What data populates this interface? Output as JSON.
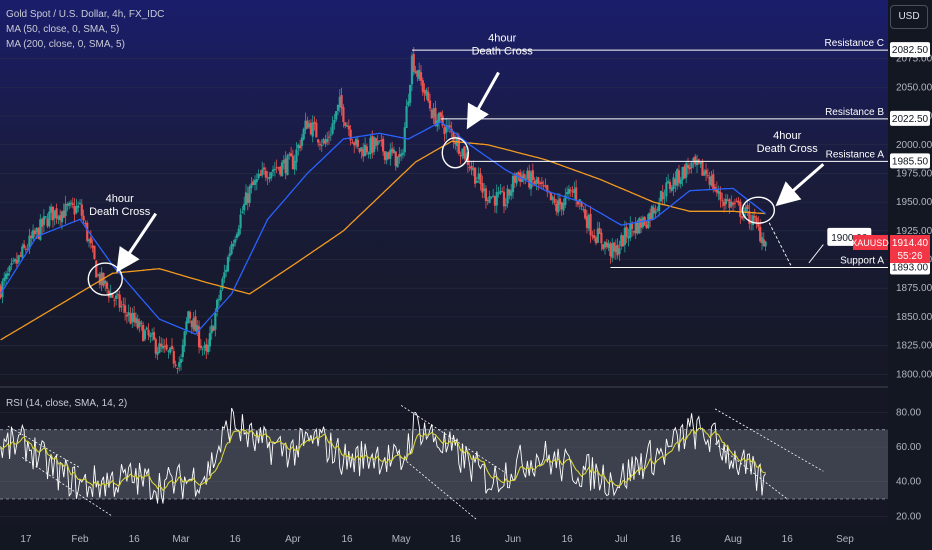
{
  "header": {
    "title": "Gold Spot / U.S. Dollar, 4h, FX_IDC",
    "ma50": "MA (50, close, 0, SMA, 5)",
    "ma200": "MA (200, close, 0, SMA, 5)",
    "rsi": "RSI (14, close, SMA, 14, 2)",
    "currency": "USD"
  },
  "colors": {
    "background": "#131722",
    "bull": "#26a69a",
    "bear": "#ef5350",
    "ma50": "#2962ff",
    "ma200": "#f29a1f",
    "rsi": "#ffffff",
    "rsi_ma": "#d6d23a",
    "price_tag": "#f23645"
  },
  "chart_data": [
    {
      "type": "candlestick",
      "title": "Gold Spot / U.S. Dollar, 4h, FX_IDC",
      "ylim": [
        1795,
        2100
      ],
      "y_ticks": [
        1800.0,
        1825.0,
        1850.0,
        1875.0,
        1900.0,
        1925.0,
        1950.0,
        1975.0,
        2000.0,
        2025.0,
        2050.0,
        2075.0
      ],
      "y_tick_labels": [
        "1800.00",
        "1825.00",
        "1850.00",
        "1875.00",
        "1900.00",
        "1925.00",
        "1950.00",
        "1975.00",
        "2000.00",
        "2025.00",
        "2050.00",
        "2075.00"
      ],
      "x_tick_labels": [
        "17",
        "Feb",
        "16",
        "Mar",
        "16",
        "Apr",
        "16",
        "May",
        "16",
        "Jun",
        "16",
        "Jul",
        "16",
        "Aug",
        "16",
        "Sep"
      ],
      "price_path": [
        [
          "Jan 10",
          1875
        ],
        [
          "Jan 17",
          1910
        ],
        [
          "Jan 24",
          1940
        ],
        [
          "Feb 1",
          1945
        ],
        [
          "Feb 6",
          1885
        ],
        [
          "Feb 10",
          1868
        ],
        [
          "Feb 16",
          1845
        ],
        [
          "Feb 23",
          1822
        ],
        [
          "Mar 1",
          1810
        ],
        [
          "Mar 3",
          1855
        ],
        [
          "Mar 8",
          1815
        ],
        [
          "Mar 10",
          1845
        ],
        [
          "Mar 15",
          1915
        ],
        [
          "Mar 20",
          1960
        ],
        [
          "Mar 25",
          1978
        ],
        [
          "Apr 1",
          1985
        ],
        [
          "Apr 5",
          2020
        ],
        [
          "Apr 10",
          2000
        ],
        [
          "Apr 14",
          2035
        ],
        [
          "Apr 19",
          1995
        ],
        [
          "Apr 24",
          2000
        ],
        [
          "May 1",
          1985
        ],
        [
          "May 4",
          2075
        ],
        [
          "May 10",
          2025
        ],
        [
          "May 15",
          2010
        ],
        [
          "May 19",
          1990
        ],
        [
          "May 24",
          1958
        ],
        [
          "May 30",
          1950
        ],
        [
          "Jun 2",
          1975
        ],
        [
          "Jun 8",
          1965
        ],
        [
          "Jun 13",
          1945
        ],
        [
          "Jun 18",
          1960
        ],
        [
          "Jun 23",
          1925
        ],
        [
          "Jun 29",
          1905
        ],
        [
          "Jul 3",
          1925
        ],
        [
          "Jul 8",
          1935
        ],
        [
          "Jul 13",
          1960
        ],
        [
          "Jul 20",
          1982
        ],
        [
          "Jul 25",
          1975
        ],
        [
          "Jul 28",
          1955
        ],
        [
          "Aug 2",
          1945
        ],
        [
          "Aug 6",
          1936
        ],
        [
          "Aug 10",
          1915
        ]
      ],
      "ma50_path": [
        [
          "Jan 10",
          1870
        ],
        [
          "Jan 20",
          1920
        ],
        [
          "Feb 1",
          1935
        ],
        [
          "Feb 10",
          1895
        ],
        [
          "Feb 23",
          1848
        ],
        [
          "Mar 5",
          1835
        ],
        [
          "Mar 15",
          1870
        ],
        [
          "Mar 25",
          1935
        ],
        [
          "Apr 5",
          1975
        ],
        [
          "Apr 15",
          2005
        ],
        [
          "Apr 25",
          2010
        ],
        [
          "May 3",
          2005
        ],
        [
          "May 12",
          2020
        ],
        [
          "May 20",
          2000
        ],
        [
          "May 30",
          1978
        ],
        [
          "Jun 10",
          1960
        ],
        [
          "Jun 20",
          1950
        ],
        [
          "Jul 1",
          1930
        ],
        [
          "Jul 10",
          1935
        ],
        [
          "Jul 20",
          1960
        ],
        [
          "Aug 1",
          1962
        ],
        [
          "Aug 10",
          1940
        ]
      ],
      "ma200_path": [
        [
          "Jan 10",
          1830
        ],
        [
          "Jan 25",
          1858
        ],
        [
          "Feb 10",
          1888
        ],
        [
          "Feb 23",
          1892
        ],
        [
          "Mar 8",
          1880
        ],
        [
          "Mar 20",
          1870
        ],
        [
          "Apr 1",
          1895
        ],
        [
          "Apr 15",
          1925
        ],
        [
          "Apr 25",
          1955
        ],
        [
          "May 5",
          1985
        ],
        [
          "May 15",
          2003
        ],
        [
          "May 25",
          2000
        ],
        [
          "Jun 10",
          1987
        ],
        [
          "Jun 25",
          1970
        ],
        [
          "Jul 10",
          1950
        ],
        [
          "Jul 20",
          1942
        ],
        [
          "Aug 1",
          1942
        ],
        [
          "Aug 10",
          1940
        ]
      ],
      "levels": [
        {
          "name": "Resistance C",
          "value": 2082.5,
          "label": "2082.50"
        },
        {
          "name": "Resistance B",
          "value": 2022.5,
          "label": "2022.50"
        },
        {
          "name": "Resistance A",
          "value": 1985.5,
          "label": "1985.50"
        },
        {
          "name": "Support A",
          "value": 1893.0,
          "label": "1893.00"
        }
      ],
      "current_price": {
        "symbol": "XAUUSD",
        "value": 1914.4,
        "label": "1914.40",
        "countdown": "55:26"
      },
      "target": {
        "label": "1900.00",
        "value": 1900.0
      },
      "annotations": [
        {
          "text": [
            "4hour",
            "Death Cross"
          ],
          "at": "Feb 8"
        },
        {
          "text": [
            "4hour",
            "Death Cross"
          ],
          "at": "May 16"
        },
        {
          "text": [
            "4hour",
            "Death Cross"
          ],
          "at": "Aug 7"
        }
      ]
    },
    {
      "type": "line",
      "title": "RSI (14, close, SMA, 14, 2)",
      "ylim": [
        15,
        90
      ],
      "y_ticks": [
        20.0,
        40.0,
        60.0,
        80.0
      ],
      "y_tick_labels": [
        "20.00",
        "40.00",
        "60.00",
        "80.00"
      ],
      "band": [
        30,
        70
      ],
      "rsi_path": [
        [
          "Jan 10",
          60
        ],
        [
          "Jan 17",
          62
        ],
        [
          "Jan 24",
          48
        ],
        [
          "Feb 1",
          38
        ],
        [
          "Feb 8",
          40
        ],
        [
          "Feb 16",
          42
        ],
        [
          "Feb 23",
          38
        ],
        [
          "Mar 1",
          40
        ],
        [
          "Mar 8",
          44
        ],
        [
          "Mar 15",
          75
        ],
        [
          "Mar 22",
          62
        ],
        [
          "Apr 1",
          58
        ],
        [
          "Apr 8",
          65
        ],
        [
          "Apr 16",
          52
        ],
        [
          "Apr 24",
          56
        ],
        [
          "May 1",
          50
        ],
        [
          "May 5",
          74
        ],
        [
          "May 12",
          62
        ],
        [
          "May 19",
          52
        ],
        [
          "May 26",
          40
        ],
        [
          "Jun 2",
          50
        ],
        [
          "Jun 9",
          55
        ],
        [
          "Jun 16",
          48
        ],
        [
          "Jun 23",
          45
        ],
        [
          "Jun 30",
          40
        ],
        [
          "Jul 7",
          52
        ],
        [
          "Jul 14",
          58
        ],
        [
          "Jul 20",
          70
        ],
        [
          "Jul 27",
          64
        ],
        [
          "Aug 3",
          50
        ],
        [
          "Aug 10",
          38
        ]
      ]
    }
  ]
}
